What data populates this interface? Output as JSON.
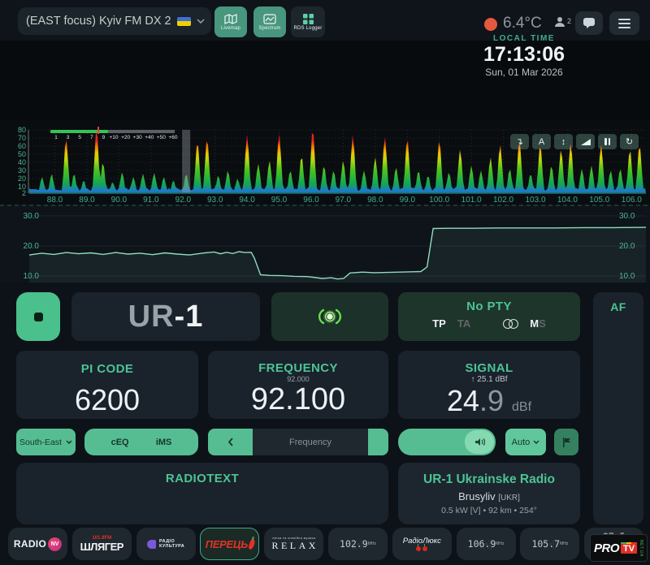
{
  "header": {
    "title": "(EAST focus) Kyiv FM DX 2",
    "nav": {
      "livemap": "Livemap",
      "spectrum": "Spectrum",
      "rds_logger": "RDS Logger"
    },
    "temperature": "6.4°C",
    "listener_count": "2"
  },
  "clock": {
    "label": "LOCAL TIME",
    "time": "17:13:06",
    "date": "Sun, 01 Mar 2026"
  },
  "colors": {
    "accent_green": "#4cc494",
    "button_green": "#56bd93",
    "panel_bg": "#1a222b",
    "status_dot": "#e4593f",
    "tx_glow": "#66e14e"
  },
  "spectrum": {
    "type": "area",
    "x_start": 88,
    "x_end": 106,
    "range_mhz": [
      87.2,
      106.45
    ],
    "tuned_mhz": 92.1,
    "y_ticks": [
      80,
      70,
      60,
      50,
      40,
      30,
      20,
      10,
      2
    ],
    "smeter_labels": [
      "1",
      "3",
      "5",
      "7",
      "9",
      "+10",
      "+20",
      "+30",
      "+40",
      "+50",
      "+60"
    ],
    "gradient": [
      [
        0,
        "#1e6fe8"
      ],
      [
        0.14,
        "#14a554"
      ],
      [
        0.36,
        "#4fc41c"
      ],
      [
        0.5,
        "#b8d70e"
      ],
      [
        0.6,
        "#f0c400"
      ],
      [
        0.7,
        "#f07c00"
      ],
      [
        0.8,
        "#e82222"
      ],
      [
        1,
        "#ff1f1f"
      ]
    ],
    "buttons": [
      {
        "name": "retune-down-icon",
        "glyph": "↴"
      },
      {
        "name": "auto-mode-icon",
        "glyph": "A"
      },
      {
        "name": "vertical-scale-icon",
        "glyph": "↕"
      },
      {
        "name": "graph-style-icon",
        "glyph": ""
      },
      {
        "name": "pause-icon",
        "glyph": ""
      },
      {
        "name": "refresh-icon",
        "glyph": "↻"
      }
    ],
    "peaks": [
      [
        87.6,
        22
      ],
      [
        87.9,
        26
      ],
      [
        88.35,
        70
      ],
      [
        88.6,
        26
      ],
      [
        88.9,
        18
      ],
      [
        89.3,
        82
      ],
      [
        89.5,
        40
      ],
      [
        89.8,
        16
      ],
      [
        90.1,
        28
      ],
      [
        90.45,
        22
      ],
      [
        90.75,
        26
      ],
      [
        91.1,
        27
      ],
      [
        91.4,
        22
      ],
      [
        91.7,
        18
      ],
      [
        92.1,
        26
      ],
      [
        92.45,
        66
      ],
      [
        92.75,
        70
      ],
      [
        93.1,
        24
      ],
      [
        93.4,
        30
      ],
      [
        93.7,
        20
      ],
      [
        94.0,
        74
      ],
      [
        94.35,
        38
      ],
      [
        94.7,
        42
      ],
      [
        95.0,
        76
      ],
      [
        95.35,
        30
      ],
      [
        95.7,
        48
      ],
      [
        96.05,
        82
      ],
      [
        96.4,
        36
      ],
      [
        96.7,
        30
      ],
      [
        97.0,
        42
      ],
      [
        97.3,
        74
      ],
      [
        97.65,
        30
      ],
      [
        98.0,
        46
      ],
      [
        98.3,
        72
      ],
      [
        98.65,
        34
      ],
      [
        99.0,
        70
      ],
      [
        99.35,
        30
      ],
      [
        99.65,
        24
      ],
      [
        100.0,
        68
      ],
      [
        100.3,
        28
      ],
      [
        100.65,
        56
      ],
      [
        101.0,
        36
      ],
      [
        101.3,
        30
      ],
      [
        101.6,
        46
      ],
      [
        101.9,
        62
      ],
      [
        102.2,
        32
      ],
      [
        102.5,
        68
      ],
      [
        102.85,
        26
      ],
      [
        103.15,
        62
      ],
      [
        103.5,
        36
      ],
      [
        103.8,
        56
      ],
      [
        104.1,
        64
      ],
      [
        104.45,
        32
      ],
      [
        104.75,
        36
      ],
      [
        105.05,
        62
      ],
      [
        105.35,
        30
      ],
      [
        105.65,
        32
      ],
      [
        105.95,
        56
      ],
      [
        106.25,
        62
      ]
    ]
  },
  "signal_chart": {
    "type": "line",
    "y_ticks": [
      30,
      20,
      10
    ],
    "ylim": [
      8.5,
      31
    ],
    "points": [
      [
        0,
        17.0
      ],
      [
        0.02,
        17.6
      ],
      [
        0.04,
        17.2
      ],
      [
        0.06,
        17.8
      ],
      [
        0.08,
        17.4
      ],
      [
        0.1,
        17.7
      ],
      [
        0.12,
        17.2
      ],
      [
        0.14,
        17.8
      ],
      [
        0.16,
        17.3
      ],
      [
        0.18,
        17.6
      ],
      [
        0.2,
        17.1
      ],
      [
        0.22,
        17.7
      ],
      [
        0.24,
        17.3
      ],
      [
        0.26,
        17.0
      ],
      [
        0.28,
        17.6
      ],
      [
        0.3,
        18.0
      ],
      [
        0.31,
        17.4
      ],
      [
        0.32,
        17.9
      ],
      [
        0.33,
        17.5
      ],
      [
        0.34,
        18.1
      ],
      [
        0.35,
        17.8
      ],
      [
        0.36,
        17.9
      ],
      [
        0.365,
        16.0
      ],
      [
        0.375,
        10.4
      ],
      [
        0.39,
        10.2
      ],
      [
        0.41,
        10.1
      ],
      [
        0.43,
        9.9
      ],
      [
        0.45,
        9.8
      ],
      [
        0.46,
        9.6
      ],
      [
        0.475,
        9.2
      ],
      [
        0.49,
        9.4
      ],
      [
        0.5,
        9.0
      ],
      [
        0.51,
        9.2
      ],
      [
        0.52,
        11.0
      ],
      [
        0.54,
        11.3
      ],
      [
        0.56,
        11.1
      ],
      [
        0.58,
        11.2
      ],
      [
        0.6,
        11.3
      ],
      [
        0.62,
        11.4
      ],
      [
        0.635,
        11.5
      ],
      [
        0.645,
        13.0
      ],
      [
        0.655,
        25.8
      ],
      [
        0.68,
        25.9
      ],
      [
        0.72,
        25.9
      ],
      [
        0.76,
        26.0
      ],
      [
        0.8,
        26.0
      ],
      [
        0.85,
        26.0
      ],
      [
        0.9,
        26.1
      ],
      [
        0.95,
        26.1
      ],
      [
        1,
        26.2
      ]
    ]
  },
  "rds": {
    "ps_prefix": "UR",
    "ps_suffix": "-1",
    "pty": "No PTY",
    "tp": "TP",
    "ta": "TA",
    "m": "M",
    "s": "S"
  },
  "panels": {
    "pi": {
      "label": "PI CODE",
      "value": "6200"
    },
    "frequency": {
      "label": "FREQUENCY",
      "previous": "92.000",
      "value": "92.100"
    },
    "signal": {
      "label": "SIGNAL",
      "peak": "↑ 25.1 dBf",
      "value_int": "24",
      "value_dec": ".9",
      "unit": "dBf"
    },
    "af": "AF",
    "radiotext": "RADIOTEXT",
    "station": {
      "name": "UR-1 Ukrainske Radio",
      "location": "Brusyliv",
      "itu": "[UKR]",
      "details": "0.5 kW [V] • 92 km • 254°"
    }
  },
  "controls": {
    "antenna": "South-East",
    "eq": "cEQ",
    "ims": "iMS",
    "tune_placeholder": "Frequency",
    "audio_mode": "Auto"
  },
  "presets": [
    {
      "name": "Radio NV",
      "text": "RADIO",
      "badge": "NV"
    },
    {
      "name": "Shlyager",
      "top": "101.9FM",
      "text": "ШЛЯГЕР"
    },
    {
      "name": "Radio Kultura",
      "line1": "РАДІО",
      "line2": "КУЛЬТУРА"
    },
    {
      "name": "Perets FM",
      "text": "ПЕРЕЦЬ",
      "selected": true
    },
    {
      "name": "Radio Relax",
      "top": "легка та спокійна музика",
      "text": "RELAX"
    },
    {
      "freq": "102.9",
      "unit": "MHz"
    },
    {
      "name": "Lux FM",
      "text": "РадіоЛюкс"
    },
    {
      "freq": "106.9",
      "unit": "MHz"
    },
    {
      "freq": "105.7",
      "unit": "MHz"
    },
    {
      "freq": "87.5",
      "unit": "MHz"
    }
  ],
  "watermark": {
    "pro": "PRO",
    "tv": "TV",
    "site": "NET.UA"
  }
}
